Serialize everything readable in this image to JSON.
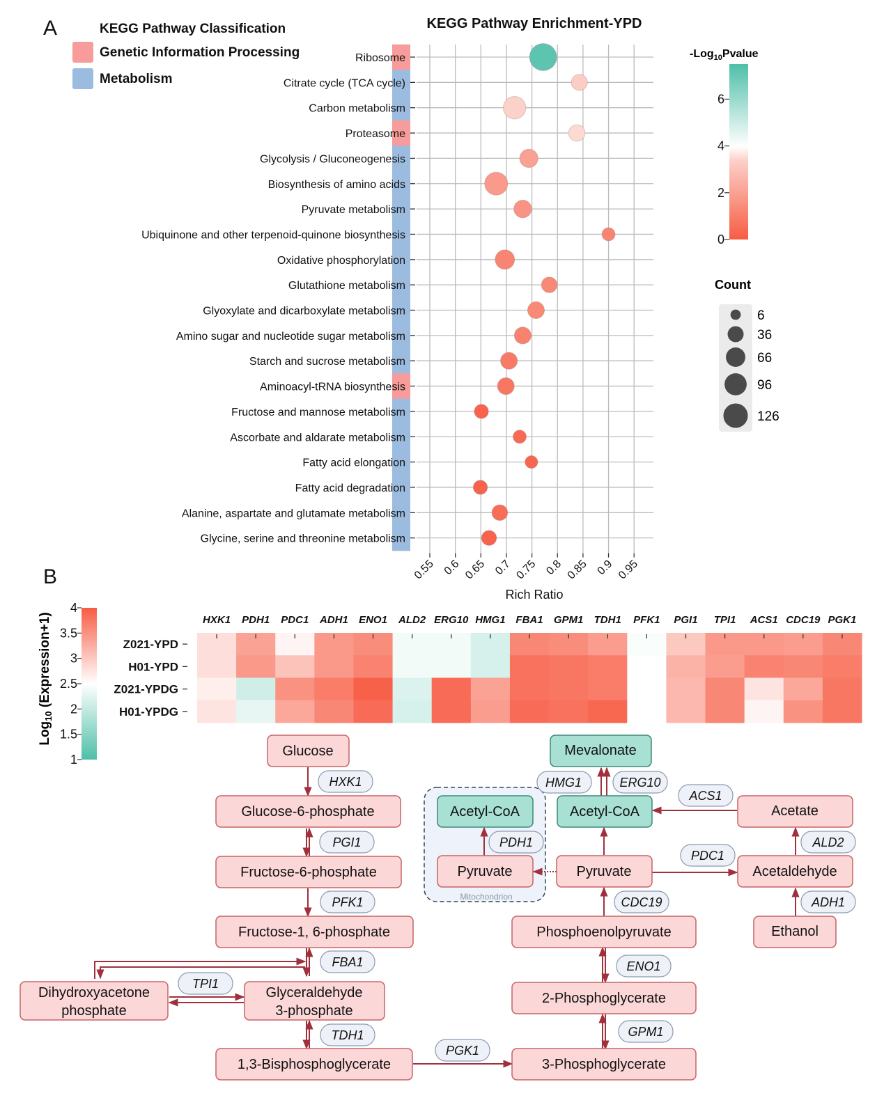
{
  "panel_labels": {
    "a": "A",
    "b": "B"
  },
  "classification_legend": {
    "title": "KEGG Pathway Classification",
    "items": [
      {
        "label": "Genetic Information Processing",
        "color": "#f79b9b"
      },
      {
        "label": "Metabolism",
        "color": "#9cbcdf"
      }
    ]
  },
  "colors": {
    "low_p": "#f75c44",
    "mid_p": "#ffffff",
    "high_p": "#4ebfa8",
    "grid": "#bbbbbb",
    "arrow": "#a0303c",
    "node_fill": "#fcd7d7",
    "node_stroke": "#c76466",
    "node_teal_fill": "#a8e0d3",
    "node_teal_stroke": "#3a8a76",
    "enzyme_fill": "#eef2f8",
    "enzyme_stroke": "#8a9ab0",
    "mito_fill": "#eef2fa",
    "mito_stroke": "#334455"
  },
  "chart_data": [
    {
      "type": "scatter",
      "title": "KEGG Pathway Enrichment-YPD",
      "xlabel": "Rich Ratio",
      "ylabel": "",
      "xlim": [
        0.525,
        0.975
      ],
      "xticks": [
        "0.55",
        "0.6",
        "0.65",
        "0.7",
        "0.75",
        "0.8",
        "0.85",
        "0.9",
        "0.95"
      ],
      "xtick_values": [
        0.55,
        0.6,
        0.65,
        0.7,
        0.75,
        0.8,
        0.85,
        0.9,
        0.95
      ],
      "grid": true,
      "color_legend": {
        "title_prefix": "-Log",
        "title_sub": "10",
        "title_suffix": "Pvalue",
        "range": [
          0,
          7.5
        ],
        "ticks": [
          "0",
          "2",
          "4",
          "6"
        ],
        "tick_values": [
          0,
          2,
          4,
          6
        ]
      },
      "size_legend": {
        "title": "Count",
        "values": [
          6,
          36,
          66,
          96,
          126
        ]
      },
      "points": [
        {
          "pathway": "Ribosome",
          "class": "Genetic Information Processing",
          "rich_ratio": 0.772,
          "neg_log10_p": 7.2,
          "count": 126
        },
        {
          "pathway": "Citrate cycle (TCA cycle)",
          "class": "Metabolism",
          "rich_ratio": 0.843,
          "neg_log10_p": 3.3,
          "count": 26
        },
        {
          "pathway": "Carbon metabolism",
          "class": "Metabolism",
          "rich_ratio": 0.716,
          "neg_log10_p": 3.4,
          "count": 76
        },
        {
          "pathway": "Proteasome",
          "class": "Genetic Information Processing",
          "rich_ratio": 0.838,
          "neg_log10_p": 3.5,
          "count": 28
        },
        {
          "pathway": "Glycolysis / Gluconeogenesis",
          "class": "Metabolism",
          "rich_ratio": 0.744,
          "neg_log10_p": 2.0,
          "count": 40
        },
        {
          "pathway": "Biosynthesis of amino acids",
          "class": "Metabolism",
          "rich_ratio": 0.68,
          "neg_log10_p": 1.8,
          "count": 80
        },
        {
          "pathway": "Pyruvate metabolism",
          "class": "Metabolism",
          "rich_ratio": 0.732,
          "neg_log10_p": 1.6,
          "count": 36
        },
        {
          "pathway": "Ubiquinone and other terpenoid-quinone biosynthesis",
          "class": "Metabolism",
          "rich_ratio": 0.9,
          "neg_log10_p": 1.2,
          "count": 12
        },
        {
          "pathway": "Oxidative phosphorylation",
          "class": "Metabolism",
          "rich_ratio": 0.697,
          "neg_log10_p": 1.2,
          "count": 48
        },
        {
          "pathway": "Glutathione metabolism",
          "class": "Metabolism",
          "rich_ratio": 0.784,
          "neg_log10_p": 1.3,
          "count": 24
        },
        {
          "pathway": "Glyoxylate and dicarboxylate metabolism",
          "class": "Metabolism",
          "rich_ratio": 0.758,
          "neg_log10_p": 1.3,
          "count": 30
        },
        {
          "pathway": "Amino sugar and nucleotide sugar metabolism",
          "class": "Metabolism",
          "rich_ratio": 0.732,
          "neg_log10_p": 1.1,
          "count": 30
        },
        {
          "pathway": "Starch and sucrose metabolism",
          "class": "Metabolism",
          "rich_ratio": 0.705,
          "neg_log10_p": 0.9,
          "count": 30
        },
        {
          "pathway": "Aminoacyl-tRNA biosynthesis",
          "class": "Genetic Information Processing",
          "rich_ratio": 0.699,
          "neg_log10_p": 0.8,
          "count": 30
        },
        {
          "pathway": "Fructose and mannose metabolism",
          "class": "Metabolism",
          "rich_ratio": 0.651,
          "neg_log10_p": 0.2,
          "count": 16
        },
        {
          "pathway": "Ascorbate and aldarate metabolism",
          "class": "Metabolism",
          "rich_ratio": 0.726,
          "neg_log10_p": 0.4,
          "count": 12
        },
        {
          "pathway": "Fatty acid elongation",
          "class": "Metabolism",
          "rich_ratio": 0.749,
          "neg_log10_p": 0.3,
          "count": 10
        },
        {
          "pathway": "Fatty acid degradation",
          "class": "Metabolism",
          "rich_ratio": 0.649,
          "neg_log10_p": 0.2,
          "count": 16
        },
        {
          "pathway": "Alanine, aspartate and glutamate metabolism",
          "class": "Metabolism",
          "rich_ratio": 0.687,
          "neg_log10_p": 0.5,
          "count": 24
        },
        {
          "pathway": "Glycine, serine and threonine metabolism",
          "class": "Metabolism",
          "rich_ratio": 0.666,
          "neg_log10_p": 0.2,
          "count": 20
        }
      ]
    },
    {
      "type": "heatmap",
      "title": "",
      "colorbar_title_prefix": "Log",
      "colorbar_title_sub": "10",
      "colorbar_title_suffix": " (Expression+1)",
      "range": [
        1,
        4
      ],
      "ticks": [
        "1",
        "1.5",
        "2",
        "2.5",
        "3",
        "3.5",
        "4"
      ],
      "tick_values": [
        1,
        1.5,
        2,
        2.5,
        3,
        3.5,
        4
      ],
      "genes": [
        "HXK1",
        "PDH1",
        "PDC1",
        "ADH1",
        "ENO1",
        "ALD2",
        "ERG10",
        "HMG1",
        "FBA1",
        "GPM1",
        "TDH1",
        "PFK1",
        "PGI1",
        "TPI1",
        "ACS1",
        "CDC19",
        "PGK1"
      ],
      "samples": [
        "Z021-YPD",
        "H01-YPD",
        "Z021-YPDG",
        "H01-YPDG"
      ],
      "values": [
        [
          2.8,
          3.35,
          2.6,
          3.45,
          3.55,
          2.4,
          2.4,
          2.15,
          3.6,
          3.55,
          3.4,
          2.45,
          3.0,
          3.45,
          3.45,
          3.4,
          3.6
        ],
        [
          2.8,
          3.45,
          3.05,
          3.45,
          3.65,
          2.4,
          2.4,
          2.15,
          3.8,
          3.75,
          3.7,
          2.5,
          3.2,
          3.4,
          3.65,
          3.6,
          3.7
        ],
        [
          2.65,
          2.1,
          3.5,
          3.7,
          3.95,
          2.2,
          3.85,
          3.35,
          3.8,
          3.75,
          3.7,
          2.5,
          3.15,
          3.6,
          2.75,
          3.3,
          3.75
        ],
        [
          2.75,
          2.3,
          3.3,
          3.6,
          3.85,
          2.15,
          3.85,
          3.4,
          3.85,
          3.8,
          3.9,
          2.5,
          3.15,
          3.6,
          2.6,
          3.5,
          3.75
        ]
      ]
    }
  ],
  "pathway": {
    "nodes": {
      "glucose": "Glucose",
      "g6p": "Glucose-6-phosphate",
      "f6p": "Fructose-6-phosphate",
      "f16p": "Fructose-1, 6-phosphate",
      "dhap_line1": "Dihydroxyacetone",
      "dhap_line2": "phosphate",
      "g3p_line1": "Glyceraldehyde",
      "g3p_line2": "3-phosphate",
      "bpg": "1,3-Bisphosphoglycerate",
      "pg3": "3-Phosphoglycerate",
      "pg2": "2-Phosphoglycerate",
      "pep": "Phosphoenolpyruvate",
      "pyruvate": "Pyruvate",
      "mito_pyruvate": "Pyruvate",
      "mito_acetyl_coa": "Acetyl-CoA",
      "acetyl_coa": "Acetyl-CoA",
      "mevalonate": "Mevalonate",
      "acetate": "Acetate",
      "acetaldehyde": "Acetaldehyde",
      "ethanol": "Ethanol"
    },
    "enzymes": {
      "hxk1": "HXK1",
      "pgi1": "PGI1",
      "pfk1": "PFK1",
      "fba1": "FBA1",
      "tpi1": "TPI1",
      "tdh1": "TDH1",
      "pgk1": "PGK1",
      "gpm1": "GPM1",
      "eno1": "ENO1",
      "cdc19": "CDC19",
      "pdh1": "PDH1",
      "hmg1": "HMG1",
      "erg10": "ERG10",
      "acs1": "ACS1",
      "pdc1": "PDC1",
      "ald2": "ALD2",
      "adh1": "ADH1"
    },
    "compartment_label": "Mitochondrion"
  }
}
